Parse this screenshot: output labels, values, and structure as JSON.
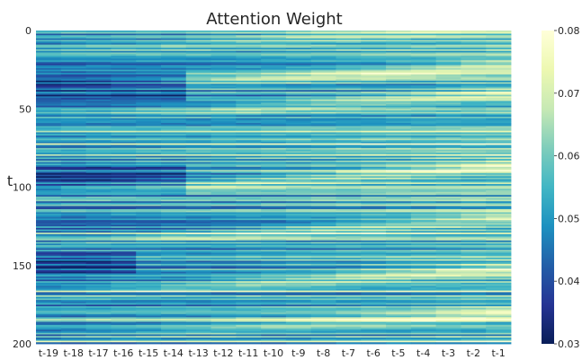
{
  "chart_data": {
    "type": "heatmap",
    "title": "Attention Weight",
    "xlabel": "",
    "ylabel": "t",
    "colormap": "YlGnBu",
    "x_categories": [
      "t-19",
      "t-18",
      "t-17",
      "t-16",
      "t-15",
      "t-14",
      "t-13",
      "t-12",
      "t-11",
      "t-10",
      "t-9",
      "t-8",
      "t-7",
      "t-6",
      "t-5",
      "t-4",
      "t-3",
      "t-2",
      "t-1"
    ],
    "y_range": [
      0,
      200
    ],
    "y_ticks": [
      0,
      50,
      100,
      150,
      200
    ],
    "colorbar": {
      "range": [
        0.03,
        0.08
      ],
      "ticks": [
        "0.03",
        "0.04",
        "0.05",
        "0.06",
        "0.07",
        "0.08"
      ]
    },
    "grid": false,
    "legend": "none"
  }
}
